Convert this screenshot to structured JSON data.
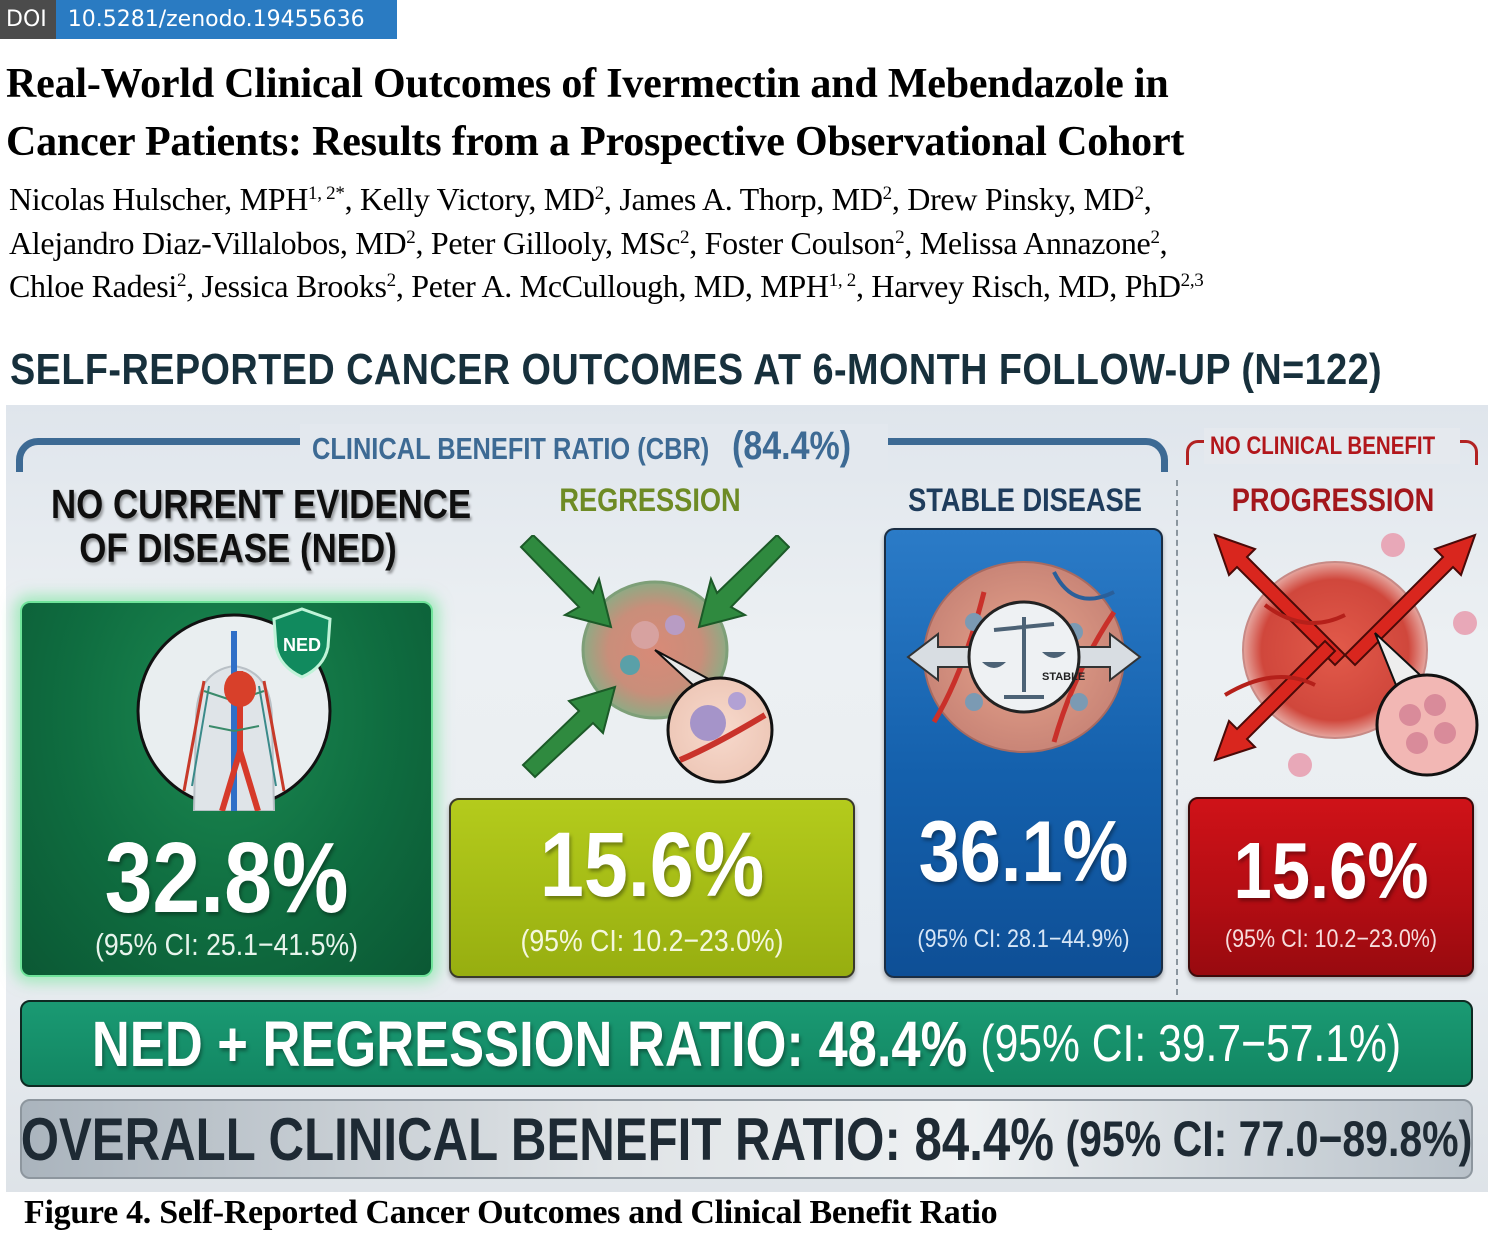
{
  "doi": {
    "label": "DOI",
    "value": "10.5281/zenodo.19455636"
  },
  "paper": {
    "title_lines": [
      "Real-World Clinical Outcomes of Ivermectin and Mebendazole in",
      "Cancer Patients: Results from a Prospective Observational Cohort"
    ],
    "authors": [
      {
        "name": "Nicolas Hulscher, MPH",
        "sup": "1, 2*"
      },
      {
        "name": "Kelly Victory, MD",
        "sup": "2"
      },
      {
        "name": "James A. Thorp, MD",
        "sup": "2"
      },
      {
        "name": "Drew Pinsky, MD",
        "sup": "2"
      },
      {
        "name": "Alejandro Diaz-Villalobos, MD",
        "sup": "2"
      },
      {
        "name": "Peter Gillooly, MSc",
        "sup": "2"
      },
      {
        "name": "Foster Coulson",
        "sup": "2"
      },
      {
        "name": "Melissa Annazone",
        "sup": "2"
      },
      {
        "name": "Chloe Radesi",
        "sup": "2"
      },
      {
        "name": "Jessica Brooks",
        "sup": "2"
      },
      {
        "name": "Peter A. McCullough, MD, MPH",
        "sup": "1, 2"
      },
      {
        "name": "Harvey Risch, MD, PhD",
        "sup": "2,3"
      }
    ]
  },
  "figure": {
    "heading": "SELF-REPORTED CANCER OUTCOMES AT 6-MONTH FOLLOW-UP (N=122)",
    "cbr_group": {
      "label": "CLINICAL BENEFIT RATIO (CBR)",
      "value": "(84.4%)"
    },
    "ncb_group": {
      "label": "NO CLINICAL BENEFIT"
    },
    "outcomes": [
      {
        "key": "ned",
        "title_lines": [
          "NO CURRENT EVIDENCE",
          "OF DISEASE (NED)"
        ],
        "percent": "32.8%",
        "ci": "(95% CI: 25.1−41.5%)",
        "badge": "NED",
        "color": "#0f6d40"
      },
      {
        "key": "regression",
        "title": "REGRESSION",
        "percent": "15.6%",
        "ci": "(95% CI: 10.2−23.0%)",
        "color": "#a3bc14"
      },
      {
        "key": "stable",
        "title": "STABLE DISEASE",
        "percent": "36.1%",
        "ci": "(95% CI: 28.1−44.9%)",
        "badge": "STABLE",
        "color": "#1460ac"
      },
      {
        "key": "progression",
        "title": "PROGRESSION",
        "percent": "15.6%",
        "ci": "(95% CI: 10.2−23.0%)",
        "color": "#b20d13"
      }
    ],
    "summary": {
      "ned_regression": {
        "label": "NED + REGRESSION RATIO: 48.4%",
        "ci": "(95% CI: 39.7−57.1%)"
      },
      "overall_cbr": {
        "label": "OVERALL CLINICAL BENEFIT RATIO: 84.4%",
        "ci": "(95% CI: 77.0−89.8%)"
      }
    },
    "caption": "Figure 4. Self-Reported Cancer Outcomes and Clinical Benefit Ratio"
  },
  "chart_data": {
    "type": "bar",
    "title": "SELF-REPORTED CANCER OUTCOMES AT 6-MONTH FOLLOW-UP (N=122)",
    "categories": [
      "No Current Evidence of Disease (NED)",
      "Regression",
      "Stable Disease",
      "Progression"
    ],
    "values": [
      32.8,
      15.6,
      36.1,
      15.6
    ],
    "ci_lower": [
      25.1,
      10.2,
      28.1,
      10.2
    ],
    "ci_upper": [
      41.5,
      23.0,
      44.9,
      23.0
    ],
    "unit": "%",
    "groups": [
      {
        "name": "Clinical Benefit Ratio (CBR)",
        "members": [
          "No Current Evidence of Disease (NED)",
          "Regression",
          "Stable Disease"
        ],
        "value": 84.4,
        "ci": [
          77.0,
          89.8
        ]
      },
      {
        "name": "No Clinical Benefit",
        "members": [
          "Progression"
        ]
      }
    ],
    "derived": [
      {
        "name": "NED + Regression Ratio",
        "value": 48.4,
        "ci": [
          39.7,
          57.1
        ]
      },
      {
        "name": "Overall Clinical Benefit Ratio",
        "value": 84.4,
        "ci": [
          77.0,
          89.8
        ]
      }
    ],
    "xlabel": "",
    "ylabel": ""
  }
}
